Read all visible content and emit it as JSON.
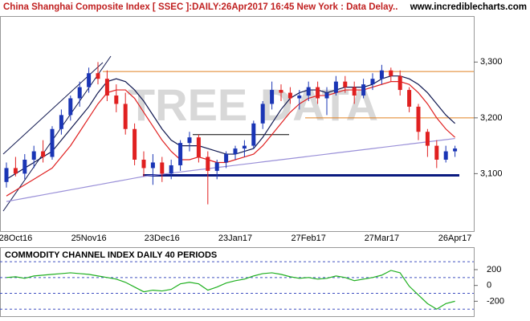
{
  "chart_data": [
    {
      "type": "candlestick",
      "title": "China Shanghai Composite Index [ SSEC ]:DAILY:26Apr2017 16:45 New York : Data Delay..",
      "site": "www.incrediblecharts.com",
      "watermark": "TREE DATA",
      "categories": [
        null,
        "28Oct16",
        null,
        null,
        null,
        null,
        null,
        null,
        null,
        "25Nov16",
        null,
        null,
        null,
        null,
        null,
        null,
        null,
        "23Dec16",
        null,
        null,
        null,
        null,
        null,
        null,
        null,
        "23Jan17",
        null,
        null,
        null,
        null,
        null,
        null,
        null,
        "27Feb17",
        null,
        null,
        null,
        null,
        null,
        null,
        null,
        "27Mar17",
        null,
        null,
        null,
        null,
        null,
        null,
        null,
        "26Apr17"
      ],
      "up_color": "#1a35b5",
      "down_color": "#e02020",
      "candles": [
        [
          3085,
          3120,
          3075,
          3110
        ],
        [
          3110,
          3130,
          3095,
          3100
        ],
        [
          3100,
          3135,
          3090,
          3125
        ],
        [
          3125,
          3150,
          3110,
          3140
        ],
        [
          3140,
          3160,
          3120,
          3130
        ],
        [
          3130,
          3185,
          3125,
          3180
        ],
        [
          3180,
          3215,
          3170,
          3205
        ],
        [
          3205,
          3240,
          3195,
          3235
        ],
        [
          3235,
          3265,
          3220,
          3255
        ],
        [
          3255,
          3290,
          3245,
          3280
        ],
        [
          3280,
          3300,
          3260,
          3270
        ],
        [
          3270,
          3285,
          3230,
          3240
        ],
        [
          3240,
          3260,
          3210,
          3225
        ],
        [
          3225,
          3245,
          3170,
          3180
        ],
        [
          3180,
          3190,
          3115,
          3125
        ],
        [
          3125,
          3140,
          3095,
          3110
        ],
        [
          3110,
          3135,
          3080,
          3120
        ],
        [
          3120,
          3130,
          3085,
          3100
        ],
        [
          3100,
          3125,
          3090,
          3115
        ],
        [
          3115,
          3160,
          3105,
          3155
        ],
        [
          3155,
          3175,
          3140,
          3165
        ],
        [
          3165,
          3170,
          3120,
          3130
        ],
        [
          3130,
          3140,
          3045,
          3105
        ],
        [
          3105,
          3125,
          3090,
          3120
        ],
        [
          3120,
          3140,
          3110,
          3135
        ],
        [
          3135,
          3150,
          3125,
          3145
        ],
        [
          3145,
          3160,
          3130,
          3150
        ],
        [
          3150,
          3195,
          3145,
          3190
        ],
        [
          3190,
          3230,
          3180,
          3225
        ],
        [
          3225,
          3265,
          3215,
          3250
        ],
        [
          3250,
          3260,
          3230,
          3245
        ],
        [
          3245,
          3255,
          3225,
          3235
        ],
        [
          3235,
          3250,
          3215,
          3240
        ],
        [
          3240,
          3265,
          3230,
          3255
        ],
        [
          3255,
          3265,
          3225,
          3235
        ],
        [
          3235,
          3255,
          3205,
          3245
        ],
        [
          3245,
          3275,
          3240,
          3265
        ],
        [
          3265,
          3275,
          3245,
          3255
        ],
        [
          3255,
          3265,
          3225,
          3240
        ],
        [
          3240,
          3270,
          3235,
          3260
        ],
        [
          3260,
          3280,
          3250,
          3270
        ],
        [
          3270,
          3295,
          3260,
          3285
        ],
        [
          3285,
          3290,
          3265,
          3275
        ],
        [
          3275,
          3285,
          3240,
          3250
        ],
        [
          3250,
          3255,
          3210,
          3220
        ],
        [
          3220,
          3225,
          3160,
          3175
        ],
        [
          3175,
          3180,
          3130,
          3150
        ],
        [
          3150,
          3160,
          3110,
          3125
        ],
        [
          3125,
          3150,
          3120,
          3140
        ],
        [
          3140,
          3150,
          3130,
          3145
        ]
      ],
      "series": [
        {
          "color": "#e02020",
          "values": [
            3060,
            3070,
            3080,
            3090,
            3100,
            3110,
            3130,
            3150,
            3175,
            3200,
            3225,
            3245,
            3250,
            3250,
            3235,
            3210,
            3185,
            3160,
            3140,
            3125,
            3125,
            3130,
            3125,
            3120,
            3120,
            3125,
            3130,
            3135,
            3150,
            3170,
            3190,
            3210,
            3225,
            3235,
            3240,
            3240,
            3245,
            3250,
            3250,
            3250,
            3255,
            3260,
            3265,
            3265,
            3260,
            3245,
            3225,
            3200,
            3180,
            3165
          ]
        },
        {
          "color": "#101850",
          "values": [
            3090,
            3100,
            3110,
            3120,
            3130,
            3140,
            3160,
            3180,
            3200,
            3220,
            3245,
            3265,
            3270,
            3265,
            3250,
            3230,
            3205,
            3180,
            3160,
            3150,
            3150,
            3150,
            3145,
            3140,
            3135,
            3135,
            3140,
            3145,
            3165,
            3190,
            3215,
            3235,
            3245,
            3250,
            3250,
            3245,
            3250,
            3255,
            3255,
            3255,
            3260,
            3270,
            3275,
            3275,
            3270,
            3260,
            3245,
            3225,
            3205,
            3190
          ]
        },
        {
          "color": "#9a90d8",
          "values": [
            3050,
            3053,
            3056,
            3059,
            3062,
            3065,
            3068,
            3071,
            3074,
            3077,
            3080,
            3083,
            3086,
            3089,
            3092,
            3095,
            3097,
            3099,
            3101,
            3103,
            3105,
            3107,
            3109,
            3111,
            3113,
            3115,
            3117,
            3119,
            3121,
            3123,
            3125,
            3127,
            3129,
            3131,
            3133,
            3135,
            3137,
            3139,
            3141,
            3143,
            3145,
            3147,
            3149,
            3151,
            3153,
            3155,
            3157,
            3159,
            3161,
            3163
          ]
        }
      ],
      "levels": [
        {
          "value": 3283,
          "color": "#e08020"
        },
        {
          "value": 3200,
          "color": "#e08020"
        },
        {
          "value": 3170,
          "color": "#000000"
        },
        {
          "value": 3097,
          "color": "#0a1a80"
        }
      ],
      "ylim": [
        2997,
        3381
      ],
      "yticks": [
        {
          "value": 3300,
          "label": "3,300"
        },
        {
          "value": 3200,
          "label": "3,200"
        },
        {
          "value": 3100,
          "label": "3,100"
        }
      ]
    },
    {
      "type": "line",
      "title": "COMMODITY CHANNEL INDEX DAILY 40 PERIODS",
      "color": "#20b020",
      "values": [
        100,
        110,
        90,
        120,
        130,
        140,
        150,
        160,
        150,
        140,
        120,
        100,
        80,
        40,
        -20,
        -80,
        -60,
        -70,
        -50,
        20,
        40,
        20,
        -60,
        -20,
        30,
        60,
        80,
        120,
        150,
        160,
        140,
        110,
        90,
        100,
        80,
        90,
        120,
        100,
        60,
        80,
        100,
        130,
        190,
        160,
        -10,
        -120,
        -230,
        -300,
        -230,
        -200
      ],
      "bands": [
        300,
        100,
        -100,
        -300
      ],
      "ylim": [
        -389,
        474
      ],
      "yticks": [
        200,
        0,
        -200
      ]
    }
  ]
}
